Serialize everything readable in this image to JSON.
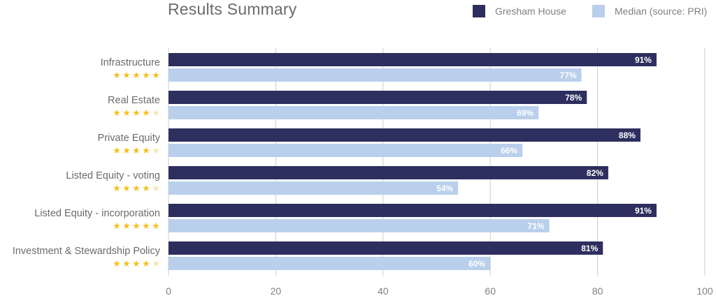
{
  "chart_data": {
    "type": "bar",
    "orientation": "horizontal",
    "title": "Results Summary",
    "categories": [
      "Infrastructure",
      "Real Estate",
      "Private Equity",
      "Listed Equity - voting",
      "Listed Equity - incorporation",
      "Investment & Stewardship Policy"
    ],
    "ratings": [
      5,
      4,
      4,
      4,
      5,
      4
    ],
    "rating_max": 5,
    "series": [
      {
        "name": "Gresham House",
        "color": "#2d2f5e",
        "values": [
          91,
          78,
          88,
          82,
          91,
          81
        ]
      },
      {
        "name": "Median (source: PRI)",
        "color": "#b9cfeb",
        "values": [
          77,
          69,
          66,
          54,
          71,
          60
        ]
      }
    ],
    "value_suffix": "%",
    "xlim": [
      0,
      100
    ],
    "xticks": [
      "0",
      "20",
      "40",
      "60",
      "80",
      "100"
    ],
    "grid": true,
    "legend_position": "top-right",
    "star_color_filled": "#f4c020",
    "star_color_empty": "#f3e6b0"
  }
}
